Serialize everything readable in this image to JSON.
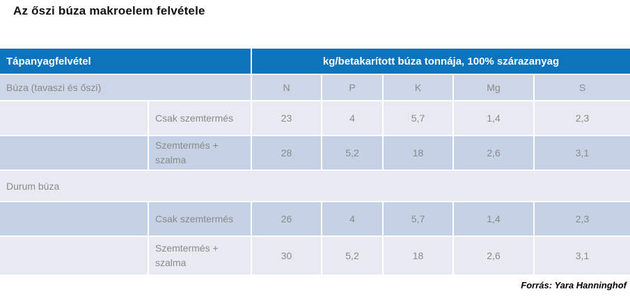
{
  "title": "Az őszi búza makroelem felvétele",
  "source": "Forrás: Yara Hanninghof",
  "colors": {
    "header_bg": "#0d73bb",
    "subheader_bg": "#cdd6e6",
    "row_blue_bg": "#c5d1e4",
    "row_light_bg": "#e8eaf1",
    "header_text": "#ffffff",
    "cell_text": "#8a8a8a",
    "title_text": "#111111"
  },
  "table": {
    "header": {
      "left": "Tápanyagfelvétel",
      "right": "kg/betakarított búza tonnája, 100% szárazanyag"
    },
    "columns": [
      "N",
      "P",
      "K",
      "Mg",
      "S"
    ],
    "sections": [
      {
        "group": "Búza (tavaszi és őszi)",
        "rows": [
          {
            "label": "Csak szemtermés",
            "values": [
              "23",
              "4",
              "5,7",
              "1,4",
              "2,3"
            ]
          },
          {
            "label": "Szemtermés + szalma",
            "values": [
              "28",
              "5,2",
              "18",
              "2,6",
              "3,1"
            ]
          }
        ]
      },
      {
        "group": "Durum búza",
        "rows": [
          {
            "label": "Csak szemtermés",
            "values": [
              "26",
              "4",
              "5,7",
              "1,4",
              "2,3"
            ]
          },
          {
            "label": "Szemtermés + szalma",
            "values": [
              "30",
              "5,2",
              "18",
              "2,6",
              "3,1"
            ]
          }
        ]
      }
    ]
  }
}
